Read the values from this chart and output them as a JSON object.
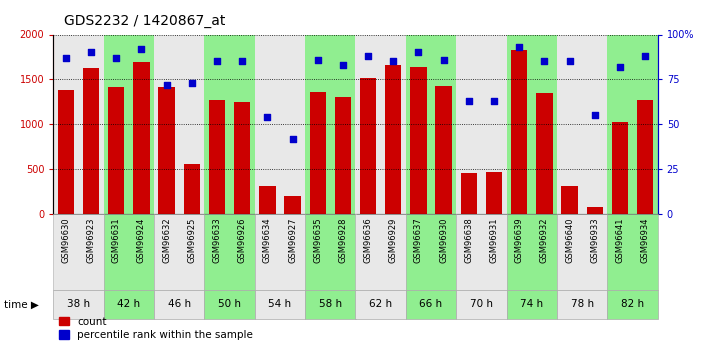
{
  "title": "GDS2232 / 1420867_at",
  "samples": [
    "GSM96630",
    "GSM96923",
    "GSM96631",
    "GSM96924",
    "GSM96632",
    "GSM96925",
    "GSM96633",
    "GSM96926",
    "GSM96634",
    "GSM96927",
    "GSM96635",
    "GSM96928",
    "GSM96636",
    "GSM96929",
    "GSM96637",
    "GSM96930",
    "GSM96638",
    "GSM96931",
    "GSM96639",
    "GSM96932",
    "GSM96640",
    "GSM96933",
    "GSM96641",
    "GSM96934"
  ],
  "counts": [
    1380,
    1630,
    1420,
    1690,
    1410,
    560,
    1270,
    1250,
    310,
    200,
    1360,
    1300,
    1510,
    1660,
    1640,
    1430,
    460,
    470,
    1830,
    1350,
    310,
    80,
    1020,
    1270
  ],
  "percentile": [
    87,
    90,
    87,
    92,
    72,
    73,
    85,
    85,
    54,
    42,
    86,
    83,
    88,
    85,
    90,
    86,
    63,
    63,
    93,
    85,
    85,
    55,
    82,
    88
  ],
  "time_groups": [
    "38 h",
    "42 h",
    "46 h",
    "50 h",
    "54 h",
    "58 h",
    "62 h",
    "66 h",
    "70 h",
    "74 h",
    "78 h",
    "82 h"
  ],
  "bar_color": "#cc0000",
  "dot_color": "#0000cc",
  "group_colors": [
    "#e8e8e8",
    "#90EE90",
    "#e8e8e8",
    "#90EE90",
    "#e8e8e8",
    "#90EE90",
    "#e8e8e8",
    "#90EE90",
    "#e8e8e8",
    "#90EE90",
    "#e8e8e8",
    "#90EE90"
  ]
}
